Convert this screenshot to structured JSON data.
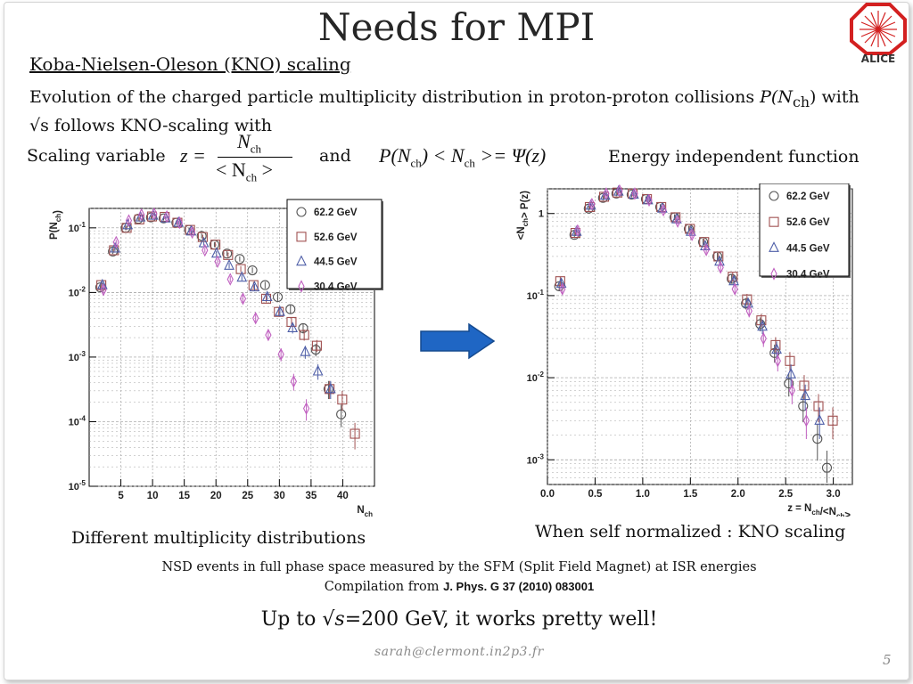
{
  "slide": {
    "title": "Needs for MPI",
    "logo_text": "ALICE",
    "subtitle": "Koba-Nielsen-Oleson (KNO) scaling",
    "description_part1": "Evolution of the charged particle multiplicity distribution in proton-proton collisions ",
    "description_formula": "P(N",
    "description_formula_sub": "ch",
    "description_part2": ") with √s follows KNO-scaling with",
    "scaling_label": "Scaling variable",
    "eq1_lhs": "z =",
    "eq1_num": "N",
    "eq1_num_sub": "ch",
    "eq1_den_left": "< N",
    "eq1_den_sub": "ch",
    "eq1_den_right": " >",
    "and_label": "and",
    "eq2_a": "P(N",
    "eq2_a_sub": "ch",
    "eq2_b": ") < N",
    "eq2_b_sub": "ch",
    "eq2_c": " >= Ψ(z)",
    "energy_label": "Energy independent function",
    "caption_left": "Different multiplicity distributions",
    "caption_right": "When self normalized : KNO scaling",
    "note_line1": "NSD events in full phase space measured by the SFM (Split Field Magnet) at ISR energies",
    "note_line2_prefix": "Compilation from ",
    "note_line2_ref": "J. Phys. G 37 (2010) 083001",
    "conclusion_prefix": "Up to √",
    "conclusion_var": "s",
    "conclusion_suffix": "=200 GeV, it works pretty well!",
    "email": "sarah@clermont.in2p3.fr",
    "page_number": "5",
    "arrow_color": "#1f66c4"
  },
  "chart_data": [
    {
      "type": "scatter",
      "xlabel": "N_ch",
      "ylabel": "P(N_ch)",
      "ylog": true,
      "xlim": [
        0,
        45
      ],
      "ylim": [
        1e-05,
        0.2
      ],
      "x_ticks": [
        "5",
        "10",
        "15",
        "20",
        "25",
        "30",
        "35",
        "40"
      ],
      "x_tick_values": [
        5,
        10,
        15,
        20,
        25,
        30,
        35,
        40
      ],
      "y_ticks": [
        "10-1",
        "10-2",
        "10-3",
        "10-4",
        "10-5"
      ],
      "y_tick_values": [
        0.1,
        0.01,
        0.001,
        0.0001,
        1e-05
      ],
      "grid": true,
      "legend_position": "top-right",
      "series": [
        {
          "name": "62.2 GeV",
          "marker": "circle",
          "color": "#555555",
          "x": [
            2,
            4,
            6,
            8,
            10,
            12,
            14,
            16,
            18,
            20,
            22,
            24,
            26,
            28,
            30,
            32,
            34,
            36,
            38,
            40
          ],
          "y": [
            0.012,
            0.043,
            0.1,
            0.138,
            0.145,
            0.14,
            0.12,
            0.093,
            0.075,
            0.055,
            0.04,
            0.033,
            0.022,
            0.013,
            0.0085,
            0.0055,
            0.0028,
            0.0013,
            0.00032,
            0.00013
          ]
        },
        {
          "name": "52.6 GeV",
          "marker": "square",
          "color": "#a05050",
          "x": [
            2,
            4,
            6,
            8,
            10,
            12,
            14,
            16,
            18,
            20,
            22,
            24,
            26,
            28,
            30,
            32,
            34,
            36,
            38,
            40,
            42
          ],
          "y": [
            0.013,
            0.045,
            0.1,
            0.135,
            0.15,
            0.148,
            0.12,
            0.093,
            0.072,
            0.055,
            0.038,
            0.023,
            0.013,
            0.008,
            0.005,
            0.0035,
            0.0022,
            0.0015,
            0.00032,
            0.00022,
            6.5e-05
          ]
        },
        {
          "name": "44.5 GeV",
          "marker": "triangle",
          "color": "#4f5fa8",
          "x": [
            2,
            4,
            6,
            8,
            10,
            12,
            14,
            16,
            18,
            20,
            22,
            24,
            26,
            28,
            30,
            32,
            34,
            36,
            38
          ],
          "y": [
            0.013,
            0.048,
            0.11,
            0.145,
            0.155,
            0.14,
            0.12,
            0.088,
            0.058,
            0.04,
            0.026,
            0.017,
            0.012,
            0.0085,
            0.005,
            0.0028,
            0.0012,
            0.0006,
            0.00032
          ]
        },
        {
          "name": "30.4 GeV",
          "marker": "diamond",
          "color": "#c060c0",
          "x": [
            2,
            4,
            6,
            8,
            10,
            12,
            14,
            16,
            18,
            20,
            22,
            24,
            26,
            28,
            30,
            32,
            34
          ],
          "y": [
            0.011,
            0.06,
            0.13,
            0.16,
            0.165,
            0.15,
            0.12,
            0.085,
            0.045,
            0.03,
            0.016,
            0.008,
            0.004,
            0.0022,
            0.0011,
            0.00042,
            0.00016
          ]
        }
      ]
    },
    {
      "type": "scatter",
      "xlabel": "z = N_ch/<N_ch>",
      "ylabel": "<N_ch> P(z)",
      "ylog": true,
      "xlim": [
        0,
        3.2
      ],
      "ylim": [
        0.0005,
        2
      ],
      "x_ticks": [
        "0.0",
        "0.5",
        "1.0",
        "1.5",
        "2.0",
        "2.5",
        "3.0"
      ],
      "x_tick_values": [
        0,
        0.5,
        1,
        1.5,
        2,
        2.5,
        3
      ],
      "y_ticks": [
        "1",
        "10-1",
        "10-2",
        "10-3"
      ],
      "y_tick_values": [
        1,
        0.1,
        0.01,
        0.001
      ],
      "grid": true,
      "legend_position": "top-right",
      "series": [
        {
          "name": "62.2 GeV",
          "marker": "circle",
          "color": "#555555",
          "x": [
            0.14,
            0.3,
            0.45,
            0.6,
            0.74,
            0.9,
            1.05,
            1.2,
            1.35,
            1.5,
            1.65,
            1.8,
            1.95,
            2.1,
            2.25,
            2.4,
            2.55,
            2.7,
            2.85,
            2.95
          ],
          "y": [
            0.13,
            0.55,
            1.15,
            1.55,
            1.75,
            1.7,
            1.5,
            1.2,
            0.9,
            0.65,
            0.45,
            0.3,
            0.16,
            0.08,
            0.045,
            0.02,
            0.0085,
            0.0045,
            0.0018,
            0.0008
          ]
        },
        {
          "name": "52.6 GeV",
          "marker": "square",
          "color": "#a05050",
          "x": [
            0.14,
            0.3,
            0.45,
            0.6,
            0.74,
            0.9,
            1.05,
            1.2,
            1.35,
            1.5,
            1.65,
            1.8,
            1.95,
            2.1,
            2.25,
            2.4,
            2.55,
            2.7,
            2.85,
            3.0
          ],
          "y": [
            0.15,
            0.58,
            1.2,
            1.6,
            1.8,
            1.75,
            1.5,
            1.2,
            0.9,
            0.65,
            0.45,
            0.3,
            0.17,
            0.09,
            0.05,
            0.025,
            0.016,
            0.008,
            0.0045,
            0.003
          ]
        },
        {
          "name": "44.5 GeV",
          "marker": "triangle",
          "color": "#4f5fa8",
          "x": [
            0.14,
            0.3,
            0.45,
            0.6,
            0.74,
            0.9,
            1.05,
            1.2,
            1.35,
            1.5,
            1.65,
            1.8,
            1.95,
            2.1,
            2.25,
            2.4,
            2.55,
            2.7,
            2.85
          ],
          "y": [
            0.14,
            0.6,
            1.25,
            1.65,
            1.85,
            1.7,
            1.45,
            1.15,
            0.85,
            0.6,
            0.4,
            0.26,
            0.15,
            0.08,
            0.042,
            0.022,
            0.011,
            0.006,
            0.003
          ]
        },
        {
          "name": "30.4 GeV",
          "marker": "diamond",
          "color": "#c060c0",
          "x": [
            0.14,
            0.3,
            0.45,
            0.6,
            0.74,
            0.9,
            1.05,
            1.2,
            1.35,
            1.5,
            1.65,
            1.8,
            1.95,
            2.1,
            2.25,
            2.4,
            2.55,
            2.7
          ],
          "y": [
            0.12,
            0.62,
            1.3,
            1.75,
            1.9,
            1.75,
            1.45,
            1.1,
            0.8,
            0.55,
            0.36,
            0.22,
            0.12,
            0.065,
            0.03,
            0.016,
            0.007,
            0.003
          ]
        }
      ]
    }
  ]
}
